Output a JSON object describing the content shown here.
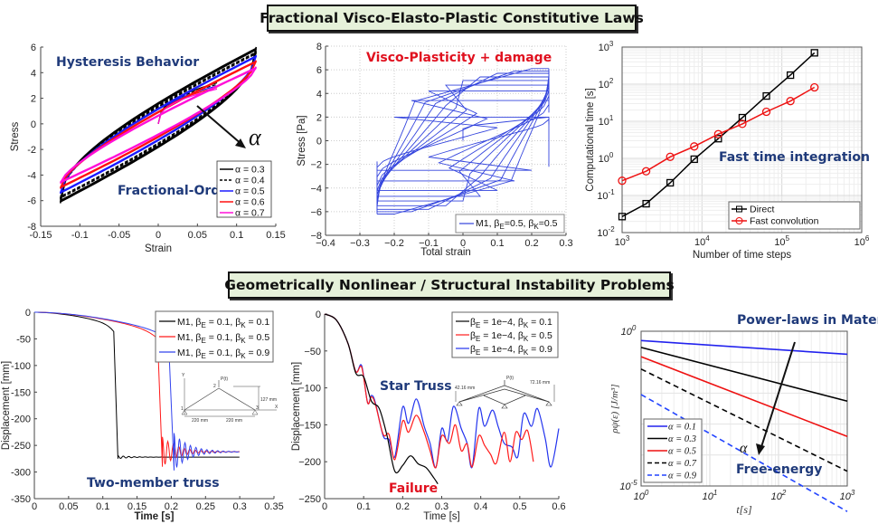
{
  "banners": {
    "top": "Fractional Visco-Elasto-Plastic Constitutive Laws",
    "bottom": "Geometrically Nonlinear / Structural Instability Problems"
  },
  "colors": {
    "annotation_blue": "#1f3a7a",
    "annotation_red": "#e0101e",
    "banner_bg": "#e6f1da"
  },
  "chart_data": [
    {
      "id": "hysteresis",
      "type": "line",
      "title": "",
      "annotations": [
        "Hysteresis Behavior",
        "Fractional-Order",
        "α"
      ],
      "xlabel": "Strain",
      "ylabel": "Stress",
      "xlim": [
        -0.15,
        0.15
      ],
      "ylim": [
        -8,
        6
      ],
      "xticks": [
        -0.15,
        -0.1,
        -0.05,
        0,
        0.05,
        0.1,
        0.15
      ],
      "xtick_labels": [
        "-0.15",
        "-0.1",
        "-0.05",
        "0",
        "0.05",
        "0.1",
        "0.15"
      ],
      "yticks": [
        -8,
        -6,
        -4,
        -2,
        0,
        2,
        4,
        6
      ],
      "ytick_labels": [
        "-8",
        "-6",
        "-4",
        "-2",
        "0",
        "2",
        "4",
        "6"
      ],
      "grid": false,
      "legend_position": "bottom-right",
      "series": [
        {
          "name": "α = 0.3",
          "color": "#000000",
          "dash": "solid",
          "alpha": 0.3,
          "peak_top": 5.9,
          "peak_bottom": -6.1,
          "knee": 0.9
        },
        {
          "name": "α = 0.4",
          "color": "#000000",
          "dash": "dashed",
          "alpha": 0.4,
          "peak_top": 5.6,
          "peak_bottom": -5.8,
          "knee": 0.8
        },
        {
          "name": "α = 0.5",
          "color": "#1a1aff",
          "dash": "solid",
          "alpha": 0.5,
          "peak_top": 5.3,
          "peak_bottom": -5.4,
          "knee": 0.65
        },
        {
          "name": "α = 0.6",
          "color": "#ff1010",
          "dash": "solid",
          "alpha": 0.6,
          "peak_top": 4.9,
          "peak_bottom": -5.0,
          "knee": 0.5
        },
        {
          "name": "α = 0.7",
          "color": "#ff10d8",
          "dash": "solid",
          "alpha": 0.7,
          "peak_top": 4.4,
          "peak_bottom": -4.6,
          "knee": 0.35
        }
      ]
    },
    {
      "id": "viscoplasticity",
      "type": "line",
      "title": "",
      "annotations": [
        "Visco-Plasticity + damage"
      ],
      "xlabel": "Total strain",
      "ylabel": "Stress [Pa]",
      "xlim": [
        -0.4,
        0.3
      ],
      "ylim": [
        -8,
        8
      ],
      "xticks": [
        -0.4,
        -0.3,
        -0.2,
        -0.1,
        0,
        0.1,
        0.2,
        0.3
      ],
      "xtick_labels": [
        "−0.4",
        "−0.3",
        "−0.2",
        "−0.1",
        "0",
        "0.1",
        "0.2",
        "0.3"
      ],
      "yticks": [
        -8,
        -6,
        -4,
        -2,
        0,
        2,
        4,
        6,
        8
      ],
      "ytick_labels": [
        "−8",
        "−6",
        "−4",
        "−2",
        "0",
        "2",
        "4",
        "6",
        "8"
      ],
      "grid": true,
      "legend_position": "bottom-right",
      "series": [
        {
          "name": "M1, β_E=0.5, β_K=0.5",
          "legend_main": "M1, β",
          "legend_sub1": "E",
          "legend_mid": "=0.5, β",
          "legend_sub2": "K",
          "legend_end": "=0.5",
          "color": "#3344dd",
          "strain_amplitude": 0.25,
          "cycles": 9,
          "top_plateaus": [
            2.0,
            3.4,
            4.2,
            4.7,
            5.1,
            5.4,
            5.7,
            5.9,
            6.1
          ],
          "bottom_plateaus": [
            -2.5,
            -3.4,
            -4.2,
            -4.7,
            -5.1,
            -5.5,
            -5.8,
            -6.0,
            -6.2
          ]
        }
      ]
    },
    {
      "id": "fast-integration",
      "type": "line",
      "scale": "log-log",
      "annotations": [
        "Fast time integration"
      ],
      "xlabel": "Number of time steps",
      "ylabel": "Computational time [s]",
      "xlim": [
        1000,
        1000000
      ],
      "ylim": [
        0.01,
        1000
      ],
      "xtick_labels": [
        "10^3",
        "10^4",
        "10^5",
        "10^6"
      ],
      "ytick_labels": [
        "10^-2",
        "10^-1",
        "10^0",
        "10^1",
        "10^2",
        "10^3"
      ],
      "grid": true,
      "legend_position": "bottom-right",
      "x": [
        1000,
        2000,
        4000,
        8000,
        16000,
        32000,
        64000,
        128000,
        256000
      ],
      "series": [
        {
          "name": "Direct",
          "color": "#000000",
          "marker": "square",
          "values": [
            0.027,
            0.06,
            0.22,
            0.95,
            3.4,
            12.5,
            48,
            175,
            700
          ]
        },
        {
          "name": "Fast convolution",
          "color": "#ee1111",
          "marker": "circle",
          "values": [
            0.25,
            0.45,
            1.1,
            2.1,
            4.5,
            8.5,
            18,
            35,
            82
          ]
        }
      ]
    },
    {
      "id": "two-member-truss",
      "type": "line",
      "annotations": [
        "Two-member truss"
      ],
      "inset_labels": {
        "p": "P(t)",
        "node2": "2",
        "node1": "1",
        "node3": "3",
        "height": "127 mm",
        "span_left": "220 mm",
        "span_right": "220 mm",
        "x_axis": "X",
        "y_axis": "Y"
      },
      "xlabel": "Time [s]",
      "ylabel": "Displacement [mm]",
      "xlim": [
        0,
        0.35
      ],
      "ylim": [
        -350,
        0
      ],
      "xticks": [
        0,
        0.05,
        0.1,
        0.15,
        0.2,
        0.25,
        0.3,
        0.35
      ],
      "xtick_labels": [
        "0",
        "0.05",
        "0.1",
        "0.15",
        "0.2",
        "0.25",
        "0.3",
        "0.35"
      ],
      "yticks": [
        -350,
        -300,
        -250,
        -200,
        -150,
        -100,
        -50,
        0
      ],
      "ytick_labels": [
        "-350",
        "-300",
        "-250",
        "-200",
        "-150",
        "-100",
        "-50",
        "0"
      ],
      "grid": false,
      "legend_position": "top-right",
      "series": [
        {
          "name": "M1, β_E = 0.1, β_K = 0.1",
          "label_main": "M1, β",
          "label_sub1": "E",
          "label_mid": " = 0.1, β",
          "label_sub2": "K",
          "label_end": " = 0.1",
          "color": "#000000",
          "snap_time": 0.118,
          "final": -272,
          "min": -275
        },
        {
          "name": "M1, β_E = 0.1, β_K = 0.5",
          "label_main": "M1, β",
          "label_sub1": "E",
          "label_mid": " = 0.1, β",
          "label_sub2": "K",
          "label_end": " = 0.5",
          "color": "#ff1a1a",
          "snap_time": 0.183,
          "final": -262,
          "min": -290
        },
        {
          "name": "M1, β_E = 0.1, β_K = 0.9",
          "label_main": "M1, β",
          "label_sub1": "E",
          "label_mid": " = 0.1, β",
          "label_sub2": "K",
          "label_end": " = 0.9",
          "color": "#3344ee",
          "snap_time": 0.2,
          "final": -262,
          "min": -297
        }
      ]
    },
    {
      "id": "star-truss",
      "type": "line",
      "annotations": [
        "Star Truss",
        "Failure"
      ],
      "inset_labels": {
        "p": "P(t)",
        "left_dim": "42.16 mm",
        "right_dim": "72.16 mm"
      },
      "xlabel": "Time [s]",
      "ylabel": "Displacement [mm]",
      "xlim": [
        0,
        0.6
      ],
      "ylim": [
        -250,
        0
      ],
      "xticks": [
        0,
        0.1,
        0.2,
        0.3,
        0.4,
        0.5,
        0.6
      ],
      "xtick_labels": [
        "0",
        "0.1",
        "0.2",
        "0.3",
        "0.4",
        "0.5",
        "0.6"
      ],
      "yticks": [
        -250,
        -200,
        -150,
        -100,
        -50,
        0
      ],
      "ytick_labels": [
        "−250",
        "−200",
        "−150",
        "−100",
        "−50",
        "0"
      ],
      "grid": false,
      "legend_position": "top-right",
      "series": [
        {
          "name": "β_E = 1e−4, β_K = 0.1",
          "label_main": "β",
          "label_sub1": "E",
          "label_mid": " = 1e−4, β",
          "label_sub2": "K",
          "label_end": " = 0.1",
          "color": "#000000",
          "t": [
            0,
            0.03,
            0.06,
            0.08,
            0.1,
            0.12,
            0.14,
            0.16,
            0.18,
            0.2,
            0.22,
            0.24,
            0.26,
            0.28,
            0.29
          ],
          "y": [
            0,
            -8,
            -40,
            -80,
            -85,
            -118,
            -128,
            -165,
            -213,
            -205,
            -192,
            -203,
            -208,
            -222,
            -230
          ]
        },
        {
          "name": "β_E = 1e−4, β_K = 0.5",
          "label_main": "β",
          "label_sub1": "E",
          "label_mid": " = 1e−4, β",
          "label_sub2": "K",
          "label_end": " = 0.5",
          "color": "#ff1a1a",
          "t": [
            0,
            0.03,
            0.06,
            0.08,
            0.095,
            0.11,
            0.12,
            0.13,
            0.15,
            0.165,
            0.18,
            0.2,
            0.215,
            0.235,
            0.255,
            0.27,
            0.285,
            0.3,
            0.32,
            0.335,
            0.35,
            0.365,
            0.378,
            0.395,
            0.41,
            0.425,
            0.44,
            0.46,
            0.475,
            0.49,
            0.505,
            0.52,
            0.535
          ],
          "y": [
            0,
            -8,
            -40,
            -78,
            -72,
            -120,
            -112,
            -122,
            -163,
            -163,
            -197,
            -145,
            -160,
            -137,
            -160,
            -185,
            -208,
            -165,
            -175,
            -150,
            -185,
            -176,
            -207,
            -165,
            -178,
            -190,
            -202,
            -160,
            -200,
            -160,
            -170,
            -158,
            -200
          ]
        },
        {
          "name": "β_E = 1e−4, β_K = 0.9",
          "label_main": "β",
          "label_sub1": "E",
          "label_mid": " = 1e−4, β",
          "label_sub2": "K",
          "label_end": " = 0.9",
          "color": "#2233ee",
          "t": [
            0,
            0.03,
            0.06,
            0.08,
            0.095,
            0.11,
            0.12,
            0.13,
            0.15,
            0.165,
            0.18,
            0.2,
            0.215,
            0.235,
            0.255,
            0.27,
            0.285,
            0.3,
            0.315,
            0.33,
            0.35,
            0.365,
            0.378,
            0.395,
            0.41,
            0.43,
            0.445,
            0.46,
            0.48,
            0.495,
            0.51,
            0.53,
            0.545,
            0.565,
            0.58,
            0.6
          ],
          "y": [
            0,
            -8,
            -40,
            -78,
            -70,
            -120,
            -110,
            -120,
            -165,
            -170,
            -193,
            -126,
            -148,
            -115,
            -152,
            -175,
            -208,
            -155,
            -172,
            -125,
            -155,
            -175,
            -207,
            -128,
            -152,
            -130,
            -153,
            -175,
            -180,
            -193,
            -135,
            -152,
            -128,
            -168,
            -207,
            -155
          ]
        }
      ]
    },
    {
      "id": "power-laws",
      "type": "line",
      "scale": "log-log",
      "title": "Power-laws in Material Relaxation",
      "annotations": [
        "Free-energy",
        "α"
      ],
      "xlabel": "t[s]",
      "ylabel": "ρψ(ε) [J/m³]",
      "xlim": [
        1,
        1000
      ],
      "ylim": [
        1e-05,
        1
      ],
      "xtick_labels": [
        "10^0",
        "10^1",
        "10^2",
        "10^3"
      ],
      "ytick_labels": [
        "10^-5",
        "10^0"
      ],
      "grid": true,
      "legend_position": "bottom-left",
      "series": [
        {
          "name": "α = 0.1",
          "color": "#2222ee",
          "dash": "solid",
          "y_start": 0.5,
          "y_end": 0.18
        },
        {
          "name": "α = 0.3",
          "color": "#000000",
          "dash": "solid",
          "y_start": 0.3,
          "y_end": 0.0055
        },
        {
          "name": "α = 0.5",
          "color": "#ee1111",
          "dash": "solid",
          "y_start": 0.15,
          "y_end": 0.0004
        },
        {
          "name": "α = 0.7",
          "color": "#000000",
          "dash": "dashed",
          "y_start": 0.06,
          "y_end": 3e-05
        },
        {
          "name": "α = 0.9",
          "color": "#2244ff",
          "dash": "dashed",
          "y_start": 0.009,
          "y_end": 1.5e-06
        }
      ]
    }
  ]
}
